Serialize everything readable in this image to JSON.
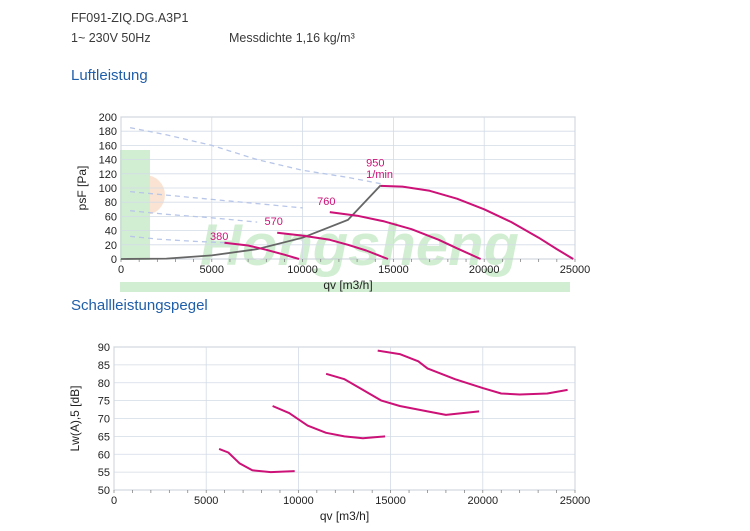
{
  "header": {
    "model": "FF091-ZIQ.DG.A3P1",
    "supply": "1~ 230V 50Hz",
    "density": "Messdichte 1,16 kg/m³"
  },
  "sections": {
    "air": "Luftleistung",
    "sound": "Schallleistungspegel"
  },
  "watermark": {
    "text": "Hongsheng",
    "color": "#7fcf7f"
  },
  "colors": {
    "curve": "#cc1177",
    "system": "#666666",
    "dashed": "#b8c6e8",
    "grid": "#d3dbe6"
  },
  "chart_data": [
    {
      "type": "line",
      "title": "Luftleistung",
      "xlabel": "qv [m3/h]",
      "ylabel": "psF [Pa]",
      "xlim": [
        0,
        25000
      ],
      "ylim": [
        0,
        200
      ],
      "xticks": [
        0,
        5000,
        10000,
        15000,
        20000,
        25000
      ],
      "yticks": [
        0,
        20,
        40,
        60,
        80,
        100,
        120,
        140,
        160,
        180,
        200
      ],
      "grid": true,
      "series": [
        {
          "name": "950",
          "points": [
            [
              14300,
              103
            ],
            [
              15500,
              102
            ],
            [
              17000,
              96
            ],
            [
              18500,
              85
            ],
            [
              20000,
              70
            ],
            [
              21500,
              52
            ],
            [
              23000,
              30
            ],
            [
              24000,
              14
            ],
            [
              24900,
              0
            ]
          ]
        },
        {
          "name": "760",
          "points": [
            [
              11500,
              66
            ],
            [
              13000,
              61
            ],
            [
              14500,
              53
            ],
            [
              16000,
              42
            ],
            [
              17500,
              27
            ],
            [
              18500,
              15
            ],
            [
              19800,
              0
            ]
          ]
        },
        {
          "name": "570",
          "points": [
            [
              8600,
              37
            ],
            [
              10000,
              33
            ],
            [
              11500,
              27
            ],
            [
              12500,
              20
            ],
            [
              13500,
              12
            ],
            [
              14700,
              0
            ]
          ]
        },
        {
          "name": "380",
          "points": [
            [
              5700,
              23
            ],
            [
              7000,
              19
            ],
            [
              8000,
              13
            ],
            [
              9000,
              6
            ],
            [
              9800,
              0
            ]
          ]
        }
      ],
      "speed_labels": [
        {
          "text": "950",
          "x": 13500,
          "y": 130
        },
        {
          "text": "1/min",
          "x": 13500,
          "y": 114
        },
        {
          "text": "760",
          "x": 10800,
          "y": 76
        },
        {
          "text": "570",
          "x": 7900,
          "y": 48
        },
        {
          "text": "380",
          "x": 4900,
          "y": 27
        }
      ],
      "system_curve": [
        [
          0,
          0
        ],
        [
          2500,
          0.5
        ],
        [
          5000,
          5
        ],
        [
          7500,
          14
        ],
        [
          10000,
          30
        ],
        [
          12500,
          55
        ],
        [
          14300,
          104
        ]
      ],
      "dashed_curves": [
        [
          [
            500,
            185
          ],
          [
            2500,
            175
          ],
          [
            5000,
            160
          ],
          [
            7500,
            140
          ],
          [
            10000,
            125
          ],
          [
            12500,
            115
          ],
          [
            14300,
            106
          ]
        ],
        [
          [
            500,
            95
          ],
          [
            2500,
            90
          ],
          [
            5000,
            84
          ],
          [
            7500,
            78
          ],
          [
            10000,
            72
          ]
        ],
        [
          [
            500,
            68
          ],
          [
            2500,
            63
          ],
          [
            5000,
            58
          ],
          [
            7500,
            52
          ]
        ],
        [
          [
            500,
            32
          ],
          [
            2000,
            28
          ],
          [
            4000,
            25
          ],
          [
            5700,
            23
          ]
        ]
      ]
    },
    {
      "type": "line",
      "title": "Schallleistungspegel",
      "xlabel": "qv [m3/h]",
      "ylabel": "Lw(A),5 [dB]",
      "xlim": [
        0,
        25000
      ],
      "ylim": [
        50,
        90
      ],
      "xticks": [
        0,
        5000,
        10000,
        15000,
        20000,
        25000
      ],
      "yticks": [
        50,
        55,
        60,
        65,
        70,
        75,
        80,
        85,
        90
      ],
      "grid": true,
      "series": [
        {
          "name": "950",
          "points": [
            [
              14300,
              89
            ],
            [
              15500,
              88
            ],
            [
              16500,
              86
            ],
            [
              17000,
              84
            ],
            [
              18500,
              81
            ],
            [
              20000,
              78.5
            ],
            [
              21000,
              77
            ],
            [
              22000,
              76.7
            ],
            [
              23500,
              77
            ],
            [
              24600,
              78
            ]
          ]
        },
        {
          "name": "760",
          "points": [
            [
              11500,
              82.5
            ],
            [
              12500,
              81
            ],
            [
              13500,
              78
            ],
            [
              14500,
              75
            ],
            [
              15500,
              73.5
            ],
            [
              17000,
              72
            ],
            [
              18000,
              71
            ],
            [
              19800,
              72
            ]
          ]
        },
        {
          "name": "570",
          "points": [
            [
              8600,
              73.5
            ],
            [
              9500,
              71.5
            ],
            [
              10500,
              68
            ],
            [
              11500,
              66
            ],
            [
              12500,
              65
            ],
            [
              13500,
              64.5
            ],
            [
              14700,
              65
            ]
          ]
        },
        {
          "name": "380",
          "points": [
            [
              5700,
              61.5
            ],
            [
              6200,
              60.5
            ],
            [
              6800,
              57.5
            ],
            [
              7500,
              55.5
            ],
            [
              8500,
              55
            ],
            [
              9800,
              55.3
            ]
          ]
        }
      ]
    }
  ]
}
